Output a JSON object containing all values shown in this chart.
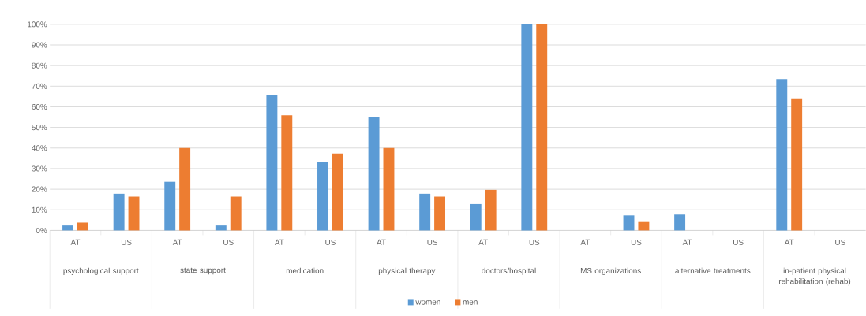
{
  "chart_data": {
    "type": "bar",
    "categories": [
      "AT",
      "US",
      "AT",
      "US",
      "AT",
      "US",
      "AT",
      "US",
      "AT",
      "US",
      "AT",
      "US",
      "AT",
      "US",
      "AT",
      "US"
    ],
    "annotations": [
      "psychological support",
      "state support",
      "medication",
      "physical therapy",
      "doctors/hospital",
      "MS organizations",
      "alternative treatments",
      "in-patient physical rehabilitation (rehab)"
    ],
    "series": [
      {
        "name": "women",
        "color": "#5b9bd5",
        "values": [
          2.4,
          17.8,
          23.6,
          2.4,
          65.7,
          33.1,
          55.2,
          17.8,
          12.8,
          100,
          null,
          7.3,
          7.7,
          null,
          73.5,
          null
        ]
      },
      {
        "name": "men",
        "color": "#ed7d31",
        "values": [
          3.8,
          16.4,
          40,
          16.4,
          55.9,
          37.3,
          40,
          16.4,
          19.7,
          100,
          null,
          4.1,
          null,
          null,
          64.1,
          null
        ]
      }
    ],
    "ylim": [
      0,
      100
    ],
    "yticks": [
      {
        "value": 0,
        "label": "0%"
      },
      {
        "value": 10,
        "label": "10%"
      },
      {
        "value": 20,
        "label": "20%"
      },
      {
        "value": 30,
        "label": "30%"
      },
      {
        "value": 40,
        "label": "40%"
      },
      {
        "value": 50,
        "label": "50%"
      },
      {
        "value": 60,
        "label": "60%"
      },
      {
        "value": 70,
        "label": "70%"
      },
      {
        "value": 80,
        "label": "80%"
      },
      {
        "value": 90,
        "label": "90%"
      },
      {
        "value": 100,
        "label": "100%"
      }
    ],
    "grid": "y",
    "legend": "bottom"
  }
}
